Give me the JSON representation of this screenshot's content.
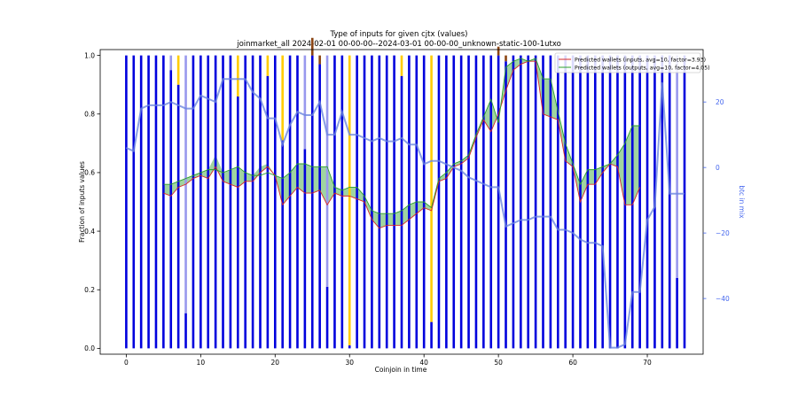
{
  "figure": {
    "title_line1": "Type of inputs for given cjtx (values)",
    "title_line2": "joinmarket_all 2024-02-01 00-00-00--2024-03-01 00-00-00_unknown-static-100-1utxo"
  },
  "chart_data": {
    "type": "bar",
    "xlabel": "Coinjoin in time",
    "ylabel": "Fraction of inputs values",
    "y2label": "btc in mix",
    "xlim": [
      -3.5,
      77.5
    ],
    "ylim": [
      -0.02,
      1.02
    ],
    "y2lim": [
      -57,
      36
    ],
    "xticks": [
      0,
      10,
      20,
      30,
      40,
      50,
      60,
      70
    ],
    "yticks": [
      0.0,
      0.2,
      0.4,
      0.6,
      0.8,
      1.0
    ],
    "y2ticks": [
      -40,
      -20,
      0,
      20
    ],
    "grid": false,
    "legend_position": "top-right",
    "legend": [
      {
        "label": "Predicted wallets (inputs, avg=10, factor=3.93)",
        "color": "#d62728"
      },
      {
        "label": "Predicted wallets (outputs, avg=10, factor=4.05)",
        "color": "#2ca02c"
      }
    ],
    "bar_categories": {
      "blue": {
        "color": "#0000dd"
      },
      "lightblue": {
        "color": "#9999ee"
      },
      "gold": {
        "color": "#ffcc00"
      },
      "brown": {
        "color": "#8b4513"
      }
    },
    "x": [
      0,
      1,
      2,
      3,
      4,
      5,
      6,
      7,
      8,
      9,
      10,
      11,
      12,
      13,
      14,
      15,
      16,
      17,
      18,
      19,
      20,
      21,
      22,
      23,
      24,
      25,
      26,
      27,
      28,
      29,
      30,
      31,
      32,
      33,
      34,
      35,
      36,
      37,
      38,
      39,
      40,
      41,
      42,
      43,
      44,
      45,
      46,
      47,
      48,
      49,
      50,
      51,
      52,
      53,
      54,
      55,
      56,
      57,
      58,
      59,
      60,
      61,
      62,
      63,
      64,
      65,
      66,
      67,
      68,
      69,
      70,
      71,
      72,
      73,
      74,
      75
    ],
    "bars": {
      "blue": [
        1,
        1,
        1,
        1,
        1,
        1,
        0.95,
        0.9,
        0.12,
        1,
        1,
        1,
        1,
        1,
        1,
        0.86,
        1,
        1,
        1,
        0.93,
        1,
        0.71,
        1,
        1,
        0.68,
        1,
        0.97,
        0.21,
        1,
        1,
        0.01,
        1,
        1,
        1,
        1,
        1,
        1,
        0.93,
        1,
        1,
        1,
        0.09,
        1,
        1,
        1,
        1,
        1,
        1,
        1,
        1,
        1,
        0.98,
        1,
        1,
        1,
        1,
        1,
        1,
        1,
        1,
        1,
        1,
        1,
        1,
        1,
        1,
        1,
        1,
        1,
        1,
        1,
        1,
        1,
        1,
        0.24,
        1
      ],
      "lightblue": [
        0,
        0,
        0,
        0,
        0,
        0,
        0.05,
        0,
        0.88,
        0,
        0,
        0,
        0,
        0,
        0,
        0,
        0,
        0,
        0,
        0,
        0,
        0,
        0,
        0,
        0.32,
        0,
        0,
        0.79,
        0,
        0,
        0,
        0,
        0,
        0,
        0,
        0,
        0,
        0,
        0,
        0,
        0,
        0,
        0,
        0,
        0,
        0,
        0,
        0,
        0,
        0,
        0,
        0,
        0,
        0,
        0,
        0,
        0,
        0,
        0,
        0,
        0,
        0,
        0,
        0,
        0,
        0,
        0,
        0,
        0,
        0,
        0,
        0,
        0,
        0,
        0.76,
        0
      ],
      "gold": [
        0,
        0,
        0,
        0,
        0,
        0,
        0,
        0.1,
        0,
        0,
        0,
        0,
        0,
        0,
        0,
        0.14,
        0,
        0,
        0,
        0.07,
        0,
        0.29,
        0,
        0,
        0,
        0,
        0,
        0,
        0,
        0,
        0.99,
        0,
        0,
        0,
        0,
        0,
        0,
        0.07,
        0,
        0,
        0,
        0.91,
        0,
        0,
        0,
        0,
        0,
        0,
        0,
        0,
        0,
        0,
        0,
        0,
        0,
        0,
        0,
        0,
        0,
        0,
        0,
        0,
        0,
        0,
        0,
        0,
        0,
        0,
        0,
        0,
        0,
        0,
        0,
        0,
        0,
        0
      ],
      "brown": [
        0,
        0,
        0,
        0,
        0,
        0,
        0,
        0,
        0,
        0,
        0,
        0,
        0,
        0,
        0,
        0,
        0,
        0,
        0,
        0,
        0,
        0,
        0,
        0,
        0,
        0.06,
        0.03,
        0,
        0,
        0,
        0,
        0,
        0,
        0,
        0,
        0,
        0,
        0,
        0,
        0,
        0,
        0,
        0,
        0,
        0,
        0,
        0,
        0,
        0,
        0,
        0.03,
        0.02,
        0,
        0,
        0,
        0,
        0,
        0,
        0,
        0,
        0,
        0,
        0,
        0,
        0,
        0,
        0,
        0,
        0,
        0,
        0,
        0,
        0,
        0,
        0,
        0
      ]
    },
    "series": [
      {
        "name": "Predicted wallets (inputs, avg=10, factor=3.93)",
        "color": "#d62728",
        "x": [
          5,
          6,
          7,
          8,
          9,
          10,
          11,
          12,
          13,
          14,
          15,
          16,
          17,
          18,
          19,
          20,
          21,
          22,
          23,
          24,
          25,
          26,
          27,
          28,
          29,
          30,
          31,
          32,
          33,
          34,
          35,
          36,
          37,
          38,
          39,
          40,
          41,
          42,
          43,
          44,
          45,
          46,
          47,
          48,
          49,
          50,
          51,
          52,
          53,
          54,
          55,
          56,
          57,
          58,
          59,
          60,
          61,
          62,
          63,
          64,
          65,
          66,
          67,
          68,
          69
        ],
        "y": [
          0.53,
          0.52,
          0.55,
          0.56,
          0.58,
          0.59,
          0.58,
          0.62,
          0.57,
          0.56,
          0.55,
          0.57,
          0.57,
          0.6,
          0.62,
          0.59,
          0.49,
          0.52,
          0.55,
          0.53,
          0.53,
          0.54,
          0.49,
          0.53,
          0.52,
          0.52,
          0.51,
          0.5,
          0.44,
          0.41,
          0.42,
          0.42,
          0.42,
          0.44,
          0.46,
          0.48,
          0.47,
          0.57,
          0.58,
          0.62,
          0.63,
          0.65,
          0.72,
          0.78,
          0.74,
          0.8,
          0.88,
          0.95,
          0.97,
          0.98,
          0.98,
          0.8,
          0.79,
          0.78,
          0.64,
          0.62,
          0.5,
          0.56,
          0.56,
          0.6,
          0.63,
          0.62,
          0.49,
          0.49,
          0.55
        ],
        "y_alt": [
          0.56,
          0.56,
          0.57,
          0.58,
          0.59,
          0.6,
          0.61,
          0.66,
          0.6,
          0.61,
          0.62,
          0.6,
          0.59,
          0.62,
          0.63,
          0.59,
          0.58,
          0.6,
          0.63,
          0.63,
          0.62,
          0.62,
          0.62,
          0.55,
          0.54,
          0.55,
          0.55,
          0.52,
          0.47,
          0.46,
          0.46,
          0.46,
          0.47,
          0.49,
          0.5,
          0.5,
          0.48,
          0.58,
          0.6,
          0.63,
          0.64,
          0.66,
          0.73,
          0.79,
          0.85,
          0.77,
          0.96,
          0.98,
          0.99,
          0.98,
          0.99,
          0.92,
          0.92,
          0.81,
          0.7,
          0.63,
          0.56,
          0.61,
          0.61,
          0.62,
          0.63,
          0.66,
          0.7,
          0.76,
          0.76
        ]
      },
      {
        "name": "Predicted wallets (outputs, avg=10, factor=4.05)",
        "color": "#2ca02c",
        "x": [
          5,
          6,
          7,
          8,
          9,
          10,
          11,
          12,
          13,
          14,
          15,
          16,
          17,
          18,
          19,
          20,
          21,
          22,
          23,
          24,
          25,
          26,
          27,
          28,
          29,
          30,
          31,
          32,
          33,
          34,
          35,
          36,
          37,
          38,
          39,
          40,
          41,
          42,
          43,
          44,
          45,
          46,
          47,
          48,
          49,
          50,
          51,
          52,
          53,
          54,
          55,
          56,
          57,
          58,
          59,
          60,
          61,
          62,
          63,
          64,
          65,
          66,
          67,
          68,
          69
        ],
        "y": [
          0.56,
          0.56,
          0.57,
          0.58,
          0.59,
          0.6,
          0.61,
          0.61,
          0.6,
          0.61,
          0.62,
          0.6,
          0.59,
          0.59,
          0.6,
          0.59,
          0.58,
          0.6,
          0.63,
          0.63,
          0.62,
          0.62,
          0.62,
          0.55,
          0.54,
          0.55,
          0.55,
          0.52,
          0.47,
          0.46,
          0.46,
          0.46,
          0.47,
          0.49,
          0.5,
          0.5,
          0.48,
          0.58,
          0.6,
          0.63,
          0.64,
          0.66,
          0.73,
          0.79,
          0.85,
          0.77,
          0.96,
          0.98,
          0.99,
          0.98,
          0.99,
          0.92,
          0.92,
          0.81,
          0.7,
          0.63,
          0.56,
          0.61,
          0.61,
          0.62,
          0.63,
          0.66,
          0.7,
          0.76,
          0.76
        ],
        "y_alt": [
          0.53,
          0.52,
          0.55,
          0.56,
          0.58,
          0.59,
          0.58,
          0.62,
          0.57,
          0.56,
          0.55,
          0.57,
          0.57,
          0.6,
          0.62,
          0.59,
          0.49,
          0.52,
          0.55,
          0.53,
          0.53,
          0.54,
          0.49,
          0.53,
          0.52,
          0.52,
          0.51,
          0.5,
          0.44,
          0.41,
          0.42,
          0.42,
          0.42,
          0.44,
          0.46,
          0.48,
          0.47,
          0.57,
          0.58,
          0.62,
          0.63,
          0.65,
          0.72,
          0.78,
          0.74,
          0.8,
          0.88,
          0.95,
          0.97,
          0.98,
          0.98,
          0.8,
          0.79,
          0.78,
          0.64,
          0.62,
          0.5,
          0.56,
          0.56,
          0.6,
          0.63,
          0.62,
          0.49,
          0.49,
          0.55
        ]
      },
      {
        "name": "btc in mix",
        "axis": "right",
        "color": "#6b86e0",
        "x": [
          0,
          1,
          2,
          3,
          4,
          5,
          6,
          7,
          8,
          9,
          10,
          11,
          12,
          13,
          14,
          15,
          16,
          17,
          18,
          19,
          20,
          21,
          22,
          23,
          24,
          25,
          26,
          27,
          28,
          29,
          30,
          31,
          32,
          33,
          34,
          35,
          36,
          37,
          38,
          39,
          40,
          41,
          42,
          43,
          44,
          45,
          46,
          47,
          48,
          49,
          50,
          51,
          52,
          53,
          54,
          55,
          56,
          57,
          58,
          59,
          60,
          61,
          62,
          63,
          64,
          65,
          66,
          67,
          68,
          69,
          70,
          71,
          72,
          73,
          74,
          75
        ],
        "y": [
          6,
          5,
          18,
          19,
          19,
          19,
          20,
          19,
          18,
          18,
          22,
          21,
          20,
          27,
          27,
          27,
          27,
          23,
          21,
          15,
          15,
          7,
          13,
          17,
          16,
          16,
          20,
          10,
          10,
          17,
          10,
          10,
          9,
          8,
          9,
          8,
          8,
          9,
          7,
          7,
          1,
          2,
          2,
          1,
          0,
          -1,
          -3,
          -4,
          -5,
          -6,
          -6,
          -18,
          -17,
          -16,
          -16,
          -15,
          -15,
          -15,
          -19,
          -19,
          -20,
          -22,
          -23,
          -23,
          -24,
          -55,
          -55,
          -54,
          -38,
          -38,
          -16,
          -12,
          26,
          -8,
          -8,
          -8
        ]
      }
    ]
  }
}
